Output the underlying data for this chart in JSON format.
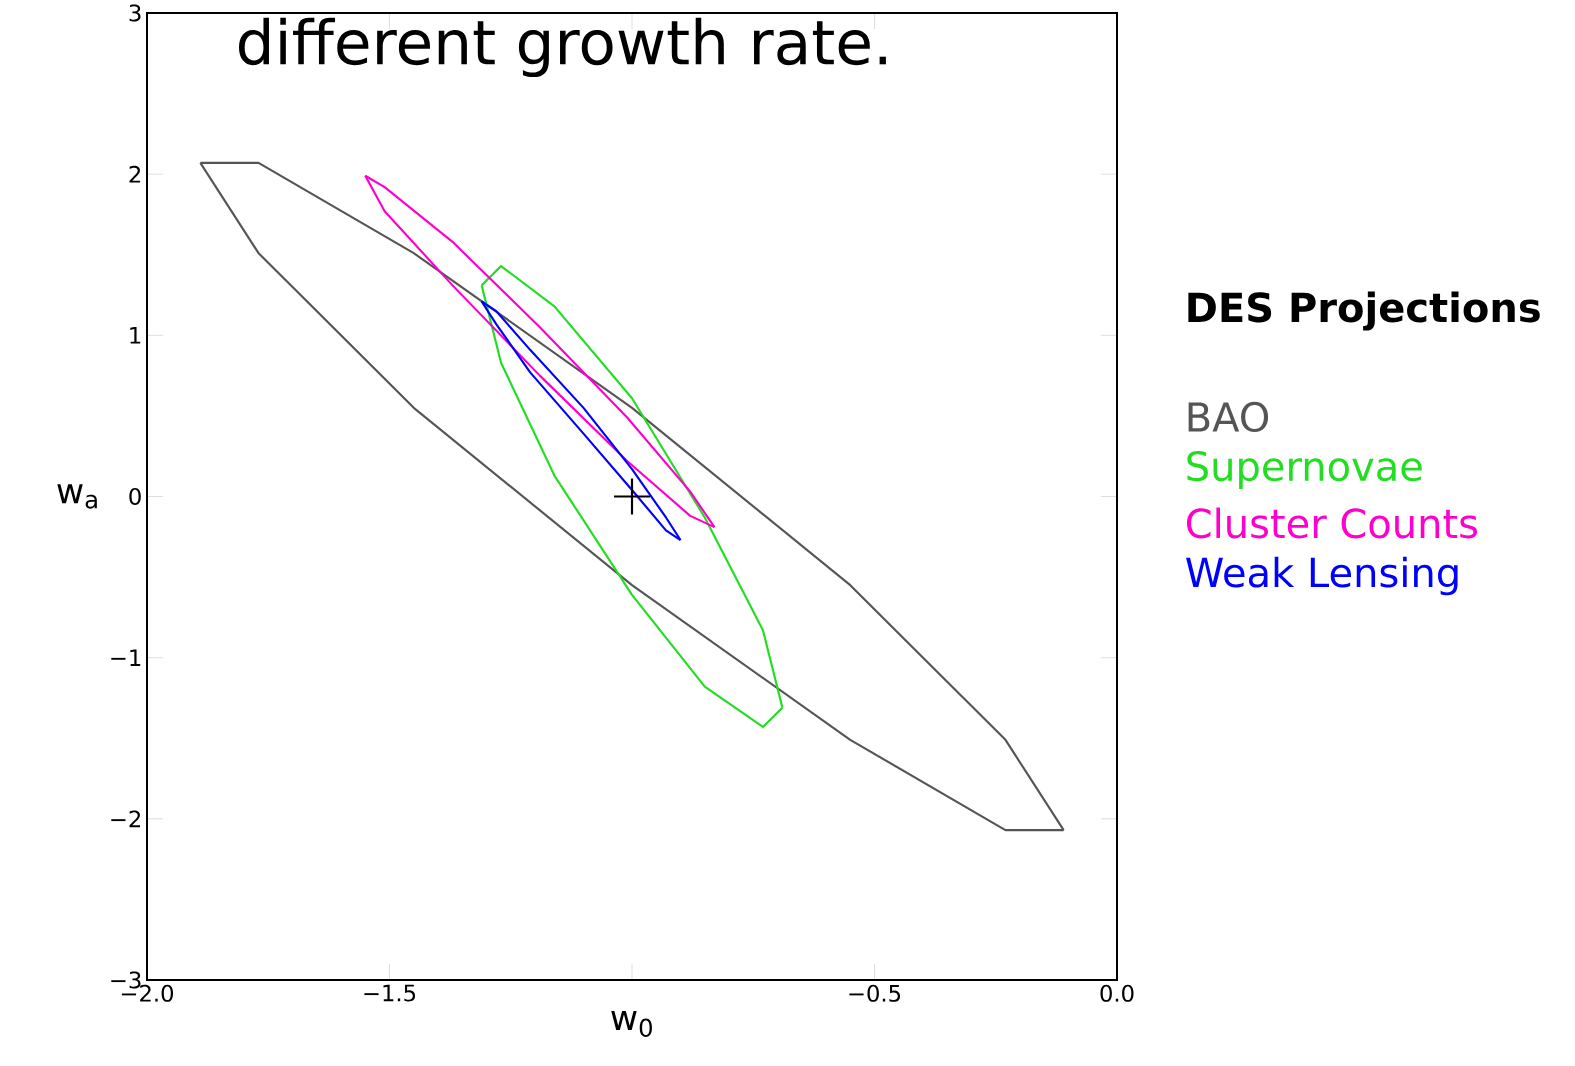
{
  "chart_data": {
    "type": "line",
    "annotations": [
      "different growth rate."
    ],
    "xlabel": "w$_{0}$",
    "ylabel": "w$_{a}$",
    "legend_title": "DES Projections",
    "legend": "right",
    "xlim": [
      -2,
      0
    ],
    "ylim": [
      -3,
      3
    ],
    "xticks": [
      {
        "value": -2,
        "label": "−2.0"
      },
      {
        "value": -1.5,
        "label": "−1.5"
      },
      {
        "value": -1,
        "label": null
      },
      {
        "value": -0.5,
        "label": "−0.5"
      },
      {
        "value": 0,
        "label": "0.0"
      }
    ],
    "yticks": [
      {
        "value": -3,
        "label": "−3"
      },
      {
        "value": -2,
        "label": "−2"
      },
      {
        "value": -1,
        "label": "−1"
      },
      0,
      1,
      2,
      3
    ],
    "series": [
      {
        "name": "BAO",
        "color": "#555555",
        "x": [
          -1.89,
          -1.77,
          -1.45,
          -1.0,
          -0.55,
          -0.23,
          -0.11
        ],
        "values": [
          2.07,
          1.51,
          0.55,
          -0.55,
          -1.51,
          -2.07,
          -2.07
        ]
      },
      {
        "color": "#555555",
        "x": [
          -1.89,
          -1.77,
          -1.45,
          -1.0,
          -0.55,
          -0.23,
          -0.11
        ],
        "values": [
          2.07,
          2.07,
          1.51,
          0.55,
          -0.55,
          -1.51,
          -2.07
        ]
      },
      {
        "name": "Supernovae",
        "color": "#22dd22",
        "x": [
          -1.31,
          -1.27,
          -1.16,
          -1.0,
          -0.85,
          -0.73,
          -0.69
        ],
        "values": [
          1.31,
          0.83,
          0.13,
          -0.61,
          -1.18,
          -1.43,
          -1.31
        ]
      },
      {
        "color": "#22dd22",
        "x": [
          -1.31,
          -1.27,
          -1.16,
          -1.0,
          -0.85,
          -0.73,
          -0.69
        ],
        "values": [
          1.31,
          1.43,
          1.18,
          0.61,
          -0.13,
          -0.83,
          -1.31
        ]
      },
      {
        "name": "Cluster Counts",
        "color": "#ff00cc",
        "x": [
          -1.55,
          -1.51,
          -1.37,
          -1.19,
          -1.01,
          -0.88,
          -0.83
        ],
        "values": [
          1.99,
          1.77,
          1.31,
          0.75,
          0.22,
          -0.12,
          -0.19
        ]
      },
      {
        "color": "#ff00cc",
        "x": [
          -1.55,
          -1.51,
          -1.37,
          -1.19,
          -1.01,
          -0.88,
          -0.83
        ],
        "values": [
          1.99,
          1.92,
          1.58,
          1.05,
          0.49,
          0.03,
          -0.19
        ]
      },
      {
        "name": "Weak Lensing",
        "color": "#0000ff",
        "x": [
          -1.31,
          -1.28,
          -1.21,
          -1.1,
          -1.0,
          -0.93,
          -0.9
        ],
        "values": [
          1.21,
          1.07,
          0.77,
          0.39,
          0.04,
          -0.21,
          -0.27
        ]
      },
      {
        "color": "#0000ff",
        "x": [
          -1.31,
          -1.28,
          -1.21,
          -1.1,
          -1.0,
          -0.93,
          -0.9
        ],
        "values": [
          1.21,
          1.15,
          0.91,
          0.55,
          0.17,
          -0.13,
          -0.27
        ]
      },
      {
        "type": "scatter",
        "marker": "cross",
        "color": "#000000",
        "x": [
          -1.0
        ],
        "values": [
          0
        ]
      }
    ]
  }
}
